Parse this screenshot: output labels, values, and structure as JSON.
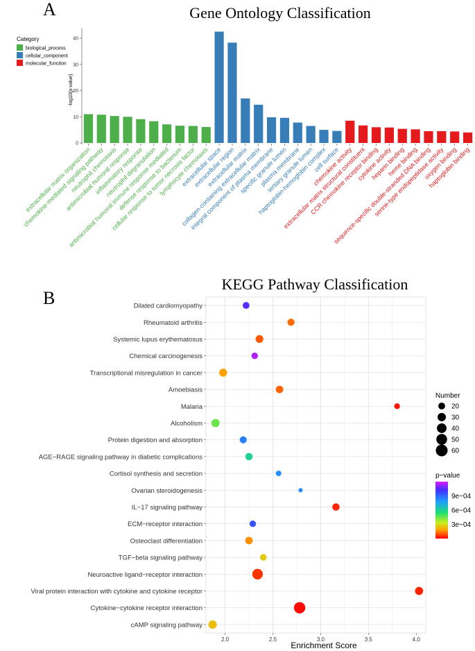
{
  "panels": {
    "a_label": "A",
    "b_label": "B"
  },
  "chart_data": [
    {
      "type": "bar",
      "title": "Gene Ontology Classification",
      "ylabel": "-log10(p-value)",
      "xlabel": "",
      "ylim": [
        0,
        45
      ],
      "yticks": [
        0,
        10,
        20,
        30,
        40
      ],
      "legend": {
        "title": "Category",
        "placement": "top-left",
        "entries": [
          {
            "name": "biological_process",
            "color": "#4DAF4A"
          },
          {
            "name": "cellular_component",
            "color": "#377EB8"
          },
          {
            "name": "molecular_function",
            "color": "#E41A1C"
          }
        ]
      },
      "categories": [
        "extracellular matrix organization",
        "chemokine-mediated signaling pathway",
        "neutrophil chemotaxis",
        "antimicrobial humoral response",
        "inflammatory response",
        "neutrophil degranulation",
        "antimicrobial humoral immune response mediated",
        "defense response to bacterium",
        "cellular response to tumor necrosis factor",
        "lymphocyte chemotaxis",
        "extracellular space",
        "extracellular region",
        "extracellular matrix",
        "collagen-containing extracellular matrix",
        "integral component of plasma membrane",
        "specific granule lumen",
        "plasma membrane",
        "tertiary granule lumen",
        "haptoglobin-hemoglobin complex",
        "cell surface",
        "chemokine activity",
        "extracellular matrix structural constituent",
        "CCR chemokine receptor binding",
        "cytokine activity",
        "heparin binding",
        "heme binding",
        "sequence-specific double-stranded DNA binding",
        "serine-type endopeptidase activity",
        "oxygen binding",
        "haptoglobin binding"
      ],
      "values": [
        11.0,
        10.8,
        10.3,
        10.0,
        9.1,
        8.3,
        7.1,
        6.6,
        6.5,
        6.1,
        42.5,
        38.3,
        17.0,
        14.6,
        9.8,
        9.6,
        7.8,
        6.5,
        5.0,
        4.6,
        8.5,
        6.7,
        6.0,
        5.9,
        5.4,
        5.2,
        4.5,
        4.5,
        4.4,
        4.0
      ],
      "groups": [
        "biological_process",
        "biological_process",
        "biological_process",
        "biological_process",
        "biological_process",
        "biological_process",
        "biological_process",
        "biological_process",
        "biological_process",
        "biological_process",
        "cellular_component",
        "cellular_component",
        "cellular_component",
        "cellular_component",
        "cellular_component",
        "cellular_component",
        "cellular_component",
        "cellular_component",
        "cellular_component",
        "cellular_component",
        "molecular_function",
        "molecular_function",
        "molecular_function",
        "molecular_function",
        "molecular_function",
        "molecular_function",
        "molecular_function",
        "molecular_function",
        "molecular_function",
        "molecular_function"
      ]
    },
    {
      "type": "scatter",
      "title": "KEGG Pathway Classification",
      "xlabel": "Enrichment Score",
      "ylabel": "",
      "xlim": [
        1.8,
        4.1
      ],
      "xticks": [
        "2.0",
        "2.5",
        "3.0",
        "3.5",
        "4.0"
      ],
      "grid": true,
      "pathways": [
        "Dilated cardiomyopathy",
        "Rheumatoid arthritis",
        "Systemic lupus erythematosus",
        "Chemical carcinogenesis",
        "Transcriptional misregulation in cancer",
        "Amoebiasis",
        "Malaria",
        "Alcoholism",
        "Protein digestion and absorption",
        "AGE−RAGE signaling pathway in diabetic complications",
        "Cortisol synthesis and secretion",
        "Ovarian steroidogenesis",
        "IL−17 signaling pathway",
        "ECM−receptor interaction",
        "Osteoclast differentiation",
        "TGF−beta signaling pathway",
        "Neuroactive ligand−receptor interaction",
        "Viral protein interaction with cytokine and cytokine receptor",
        "Cytokine−cytokine receptor interaction",
        "cAMP signaling pathway"
      ],
      "enrichment": [
        2.22,
        2.69,
        2.36,
        2.31,
        1.98,
        2.57,
        3.8,
        1.9,
        2.19,
        2.25,
        2.56,
        2.79,
        3.16,
        2.29,
        2.25,
        2.4,
        2.34,
        4.03,
        2.78,
        1.87
      ],
      "number": [
        20,
        22,
        26,
        18,
        27,
        24,
        14,
        29,
        21,
        23,
        13,
        8,
        23,
        18,
        24,
        19,
        48,
        28,
        55,
        31
      ],
      "pvalue": [
        0.00105,
        0.00012,
        0.0001,
        0.00115,
        0.00018,
        0.00011,
        2e-05,
        0.00045,
        0.00085,
        0.0006,
        0.00082,
        0.00082,
        4e-05,
        0.00095,
        0.00016,
        0.00026,
        6e-05,
        4e-05,
        1e-05,
        0.00024
      ],
      "legend_number": {
        "title": "Number",
        "placement": "right",
        "entries": [
          "20",
          "30",
          "40",
          "50",
          "60"
        ],
        "sizes": [
          20,
          30,
          40,
          50,
          60
        ]
      },
      "legend_pvalue": {
        "title": "p−value",
        "placement": "right",
        "ticks": [
          "9e−04",
          "6e−04",
          "3e−04"
        ],
        "tick_values": [
          0.0009,
          0.0006,
          0.0003
        ],
        "range": [
          0.0,
          0.0012
        ]
      }
    }
  ]
}
